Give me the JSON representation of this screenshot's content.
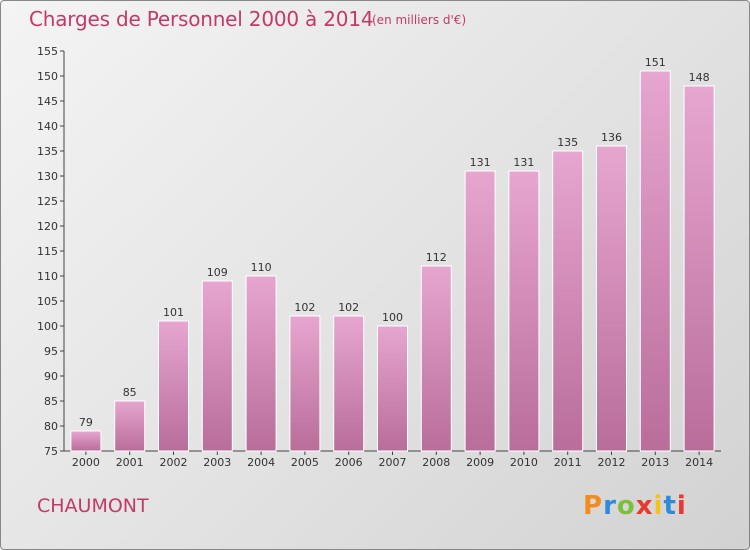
{
  "header": {
    "title": "Charges de Personnel 2000 à 2014",
    "subtitle": "(en milliers d'€)"
  },
  "footer": {
    "commune": "CHAUMONT",
    "logo_text": "Proxiti",
    "logo_colors": [
      "#f28c1e",
      "#2e8bd8",
      "#7cbf3b",
      "#e8382f",
      "#f2c31e",
      "#2e8bd8",
      "#e8382f"
    ]
  },
  "colors": {
    "accent": "#c13a6a",
    "bar_top": "#e6a6cf",
    "bar_bottom": "#b96d9a",
    "bar_edge": "#ffffff"
  },
  "chart_data": {
    "type": "bar",
    "categories": [
      "2000",
      "2001",
      "2002",
      "2003",
      "2004",
      "2005",
      "2006",
      "2007",
      "2008",
      "2009",
      "2010",
      "2011",
      "2012",
      "2013",
      "2014"
    ],
    "values": [
      79,
      85,
      101,
      109,
      110,
      102,
      102,
      100,
      112,
      131,
      131,
      135,
      136,
      151,
      148
    ],
    "title": "Charges de Personnel 2000 à 2014",
    "ylim": [
      75,
      155
    ],
    "yticks": [
      75,
      80,
      85,
      90,
      95,
      100,
      105,
      110,
      115,
      120,
      125,
      130,
      135,
      140,
      145,
      150,
      155
    ],
    "grid": false,
    "data_labels": true
  }
}
